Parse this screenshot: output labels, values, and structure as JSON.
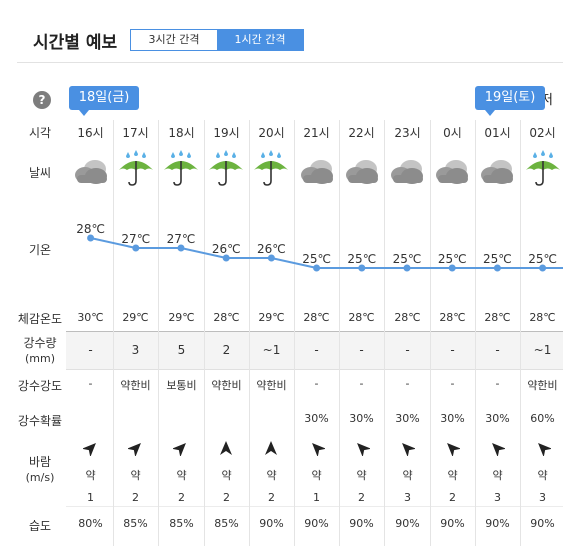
{
  "header": {
    "title": "시간별 예보",
    "tabs": [
      {
        "label": "3시간 간격",
        "active": false
      },
      {
        "label": "1시간 간격",
        "active": true
      }
    ]
  },
  "help_icon": "?",
  "date_badges": [
    {
      "label": "18일(금)",
      "column": 0
    },
    {
      "label": "19일(토)",
      "column": 9
    }
  ],
  "extra_label": "최저",
  "row_labels": {
    "time": "시각",
    "weather": "날씨",
    "temp": "기온",
    "feels": "체감온도",
    "precip_amount": [
      "강수량",
      "(mm)"
    ],
    "precip_intensity": "강수강도",
    "precip_prob": "강수확률",
    "wind": [
      "바람",
      "(m/s)"
    ],
    "humidity": "습도"
  },
  "colors": {
    "accent": "#4a90e2",
    "line": "#5b9bdf",
    "cloud": "#9a9a9a",
    "umbrella": "#6cb33f",
    "rain": "#5ab0e6"
  },
  "hours": [
    {
      "time": "16시",
      "weather": "cloudy-icon",
      "temp": 28,
      "temp_label": "28℃",
      "feels": "30℃",
      "precip": "-",
      "intensity": "-",
      "prob": "",
      "wind_dir": "sw-arrow-icon",
      "wind_strength": "약",
      "wind_speed": "1",
      "humidity": "80%"
    },
    {
      "time": "17시",
      "weather": "rain-umbrella-icon",
      "temp": 27,
      "temp_label": "27℃",
      "feels": "29℃",
      "precip": "3",
      "intensity": "약한비",
      "prob": "",
      "wind_dir": "sw-arrow-icon",
      "wind_strength": "약",
      "wind_speed": "2",
      "humidity": "85%"
    },
    {
      "time": "18시",
      "weather": "rain-umbrella-icon",
      "temp": 27,
      "temp_label": "27℃",
      "feels": "29℃",
      "precip": "5",
      "intensity": "보통비",
      "prob": "",
      "wind_dir": "sw-arrow-icon",
      "wind_strength": "약",
      "wind_speed": "2",
      "humidity": "85%"
    },
    {
      "time": "19시",
      "weather": "rain-umbrella-icon",
      "temp": 26,
      "temp_label": "26℃",
      "feels": "28℃",
      "precip": "2",
      "intensity": "약한비",
      "prob": "",
      "wind_dir": "s-arrow-icon",
      "wind_strength": "약",
      "wind_speed": "2",
      "humidity": "85%"
    },
    {
      "time": "20시",
      "weather": "rain-umbrella-icon",
      "temp": 26,
      "temp_label": "26℃",
      "feels": "29℃",
      "precip": "~1",
      "intensity": "약한비",
      "prob": "",
      "wind_dir": "s-arrow-icon",
      "wind_strength": "약",
      "wind_speed": "2",
      "humidity": "90%"
    },
    {
      "time": "21시",
      "weather": "cloudy-icon",
      "temp": 25,
      "temp_label": "25℃",
      "feels": "28℃",
      "precip": "-",
      "intensity": "-",
      "prob": "30%",
      "wind_dir": "se-arrow-icon",
      "wind_strength": "약",
      "wind_speed": "1",
      "humidity": "90%"
    },
    {
      "time": "22시",
      "weather": "cloudy-icon",
      "temp": 25,
      "temp_label": "25℃",
      "feels": "28℃",
      "precip": "-",
      "intensity": "-",
      "prob": "30%",
      "wind_dir": "se-arrow-icon",
      "wind_strength": "약",
      "wind_speed": "2",
      "humidity": "90%"
    },
    {
      "time": "23시",
      "weather": "cloudy-icon",
      "temp": 25,
      "temp_label": "25℃",
      "feels": "28℃",
      "precip": "-",
      "intensity": "-",
      "prob": "30%",
      "wind_dir": "se-arrow-icon",
      "wind_strength": "약",
      "wind_speed": "3",
      "humidity": "90%"
    },
    {
      "time": "0시",
      "weather": "cloudy-icon",
      "temp": 25,
      "temp_label": "25℃",
      "feels": "28℃",
      "precip": "-",
      "intensity": "-",
      "prob": "30%",
      "wind_dir": "se-arrow-icon",
      "wind_strength": "약",
      "wind_speed": "2",
      "humidity": "90%"
    },
    {
      "time": "01시",
      "weather": "cloudy-icon",
      "temp": 25,
      "temp_label": "25℃",
      "feels": "28℃",
      "precip": "-",
      "intensity": "-",
      "prob": "30%",
      "wind_dir": "se-arrow-icon",
      "wind_strength": "약",
      "wind_speed": "3",
      "humidity": "90%"
    },
    {
      "time": "02시",
      "weather": "rain-umbrella-icon",
      "temp": 25,
      "temp_label": "25℃",
      "feels": "28℃",
      "precip": "~1",
      "intensity": "약한비",
      "prob": "60%",
      "wind_dir": "se-arrow-icon",
      "wind_strength": "약",
      "wind_speed": "3",
      "humidity": "90%"
    }
  ]
}
